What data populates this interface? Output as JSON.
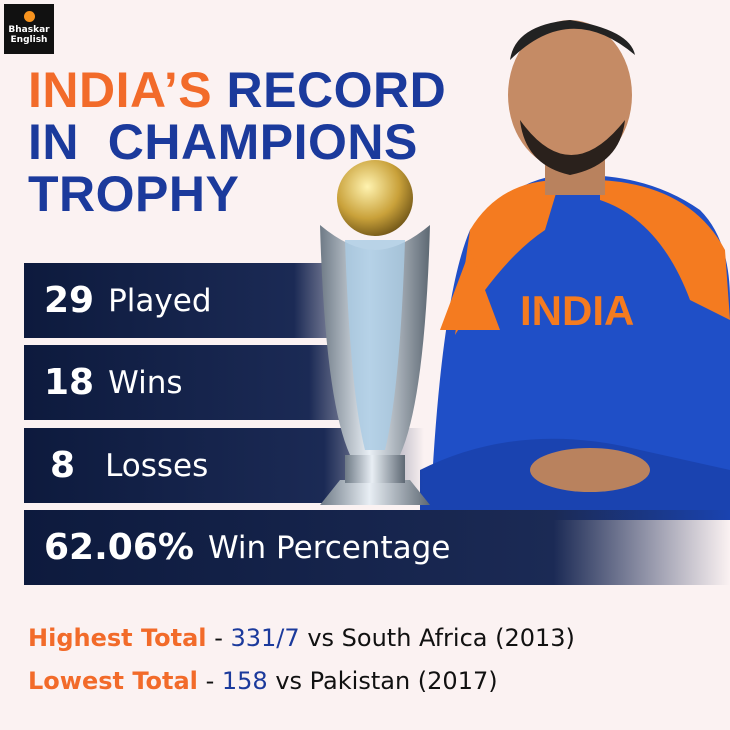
{
  "logo": {
    "line1": "Bhaskar",
    "line2": "English"
  },
  "title": {
    "highlight": "INDIA’S",
    "line1": "RECORD",
    "line2": "IN  CHAMPIONS",
    "line3": "TROPHY"
  },
  "stats": [
    {
      "number": "29",
      "label": "Played"
    },
    {
      "number": "18",
      "label": "Wins"
    },
    {
      "number": "8",
      "label": "Losses"
    },
    {
      "number": "62.06%",
      "label": "Win Percentage"
    }
  ],
  "records": [
    {
      "label": "Highest Total",
      "sep": "-",
      "score": "331/7",
      "detail": "vs South Africa (2013)"
    },
    {
      "label": "Lowest Total",
      "sep": "-",
      "score": "158",
      "detail": "vs Pakistan (2017)"
    }
  ]
}
